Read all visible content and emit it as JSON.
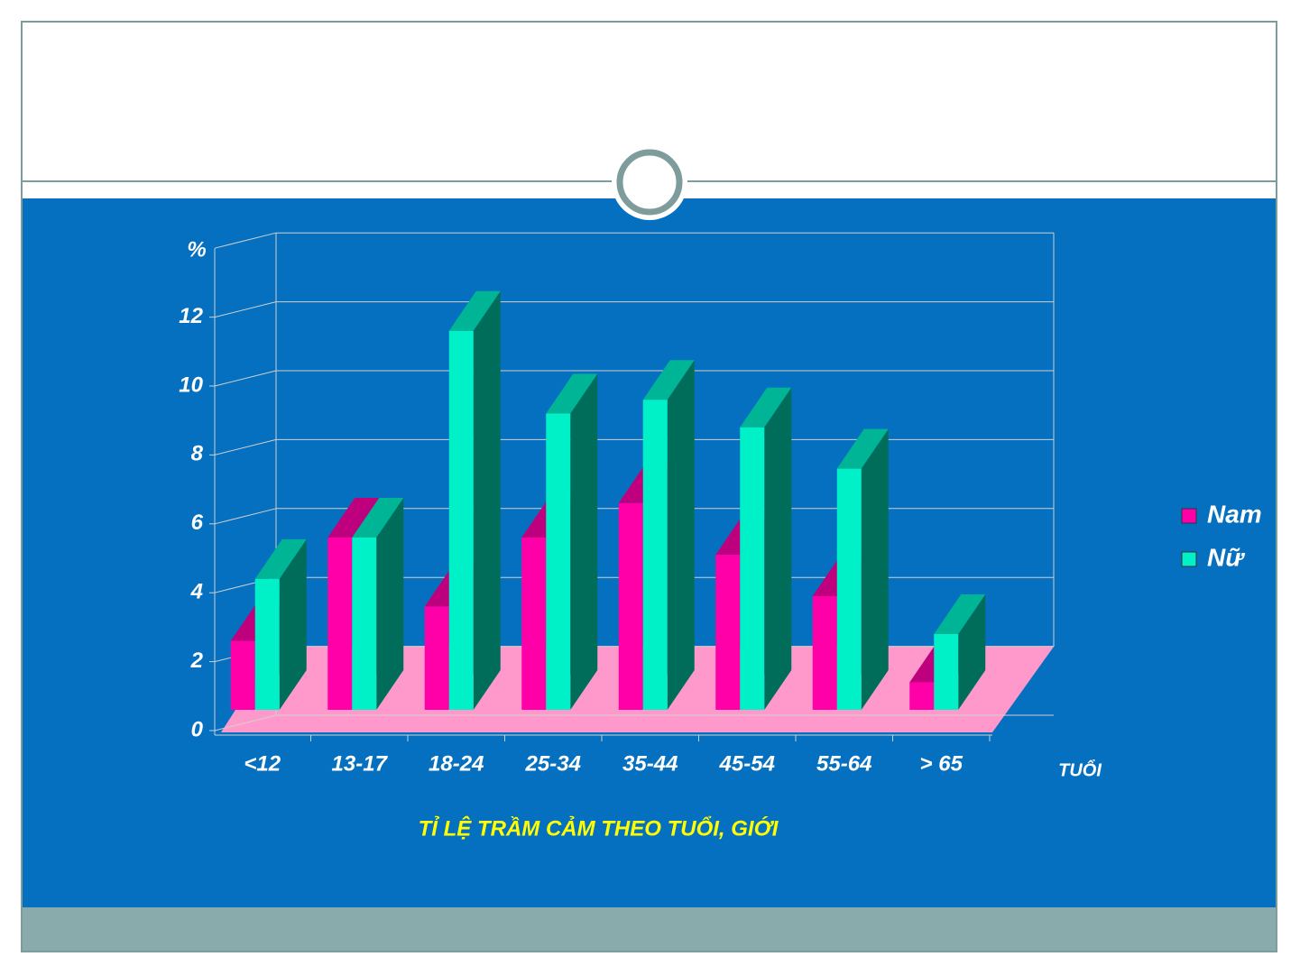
{
  "chart_data": {
    "type": "bar3d",
    "title": "TỈ LỆ TRẦM CẢM THEO TUỔI, GIỚI",
    "y_label": "%",
    "x_label": "TUỔI",
    "categories": [
      "<12",
      "13-17",
      "18-24",
      "25-34",
      "35-44",
      "45-54",
      "55-64",
      "> 65"
    ],
    "series": [
      {
        "name": "Nam",
        "color": "#ff00a8",
        "values": [
          2.0,
          5.0,
          3.0,
          5.0,
          6.0,
          4.5,
          3.3,
          0.8
        ]
      },
      {
        "name": "Nữ",
        "color": "#00f0c8",
        "values": [
          3.8,
          5.0,
          11.0,
          8.6,
          9.0,
          8.2,
          7.0,
          2.2
        ]
      }
    ],
    "ylim": [
      0,
      14
    ],
    "yticks": [
      0,
      2,
      4,
      6,
      8,
      10,
      12
    ],
    "grid": true
  }
}
